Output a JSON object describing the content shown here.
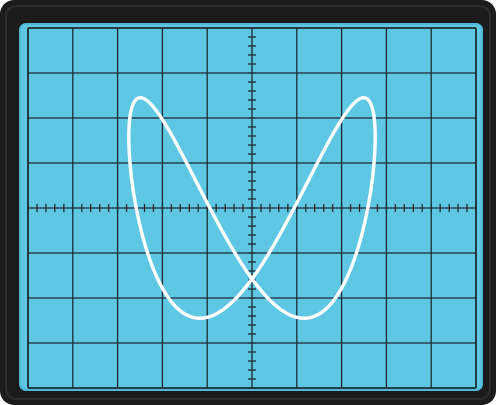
{
  "scope": {
    "bezel_color": "#1b1b1b",
    "bezel_highlight": "#2c2c2c",
    "screen_color": "#5ec7e4",
    "screen_edge_color": "#4fb8d6",
    "graticule_color": "#1f2a30",
    "trace_color": "#ffffff",
    "graticule": {
      "major_divisions_x": 10,
      "major_divisions_y": 8,
      "minor_per_division": 5
    }
  },
  "trace": {
    "type": "lissajous",
    "frequency_ratio": "1:2",
    "freq_x": 1,
    "freq_y": 2,
    "amplitude_x_div": 2.75,
    "amplitude_y_div": 2.45,
    "center_x_div": 0.0,
    "center_y_div": 0.0,
    "phase_shift_deg": 70
  }
}
